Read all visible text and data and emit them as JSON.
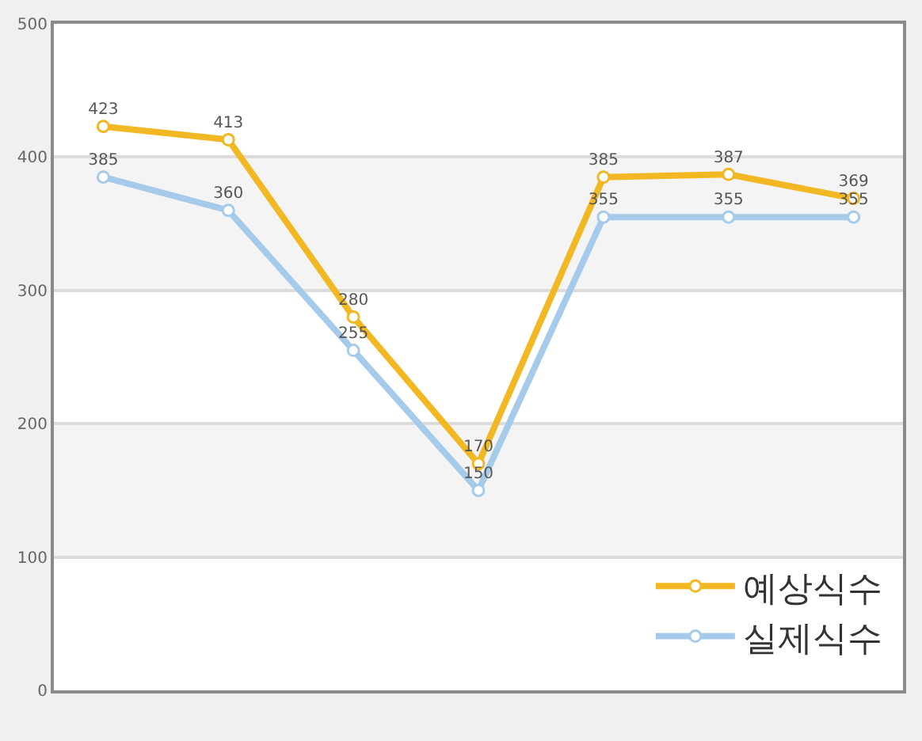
{
  "chart_data": {
    "type": "line",
    "categories": [
      null,
      null,
      null,
      null,
      null,
      null,
      null
    ],
    "series": [
      {
        "name": "예상식수",
        "color": "#f2b824",
        "values": [
          423,
          413,
          280,
          170,
          385,
          387,
          369
        ]
      },
      {
        "name": "실제식수",
        "color": "#a6cbea",
        "values": [
          385,
          360,
          255,
          150,
          355,
          355,
          355
        ]
      }
    ],
    "ylim": [
      0,
      500
    ],
    "yticks": [
      0,
      100,
      200,
      300,
      400,
      500
    ],
    "grid": "y",
    "tick_labels": "y",
    "legend": "bottom right",
    "marker": "circle",
    "line_style": "solid",
    "data_labels": true,
    "bands": [
      {
        "axis": "y",
        "from": 100,
        "to": 200,
        "color": "#f4f4f4"
      },
      {
        "axis": "y",
        "from": 300,
        "to": 400,
        "color": "#f4f4f4"
      }
    ]
  }
}
